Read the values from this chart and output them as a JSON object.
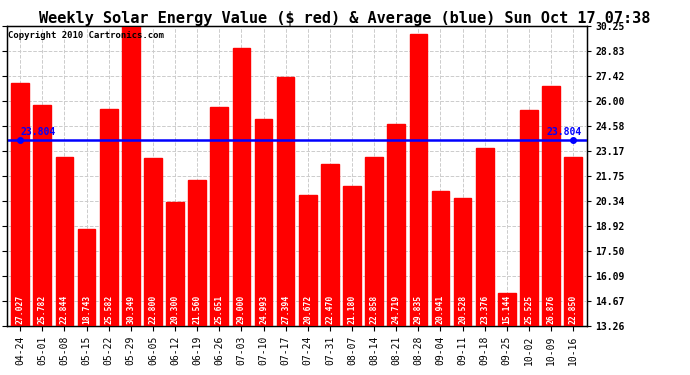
{
  "title": "Weekly Solar Energy Value ($ red) & Average (blue) Sun Oct 17 07:38",
  "copyright": "Copyright 2010 Cartronics.com",
  "categories": [
    "04-24",
    "05-01",
    "05-08",
    "05-15",
    "05-22",
    "05-29",
    "06-05",
    "06-12",
    "06-19",
    "06-26",
    "07-03",
    "07-10",
    "07-17",
    "07-24",
    "07-31",
    "08-07",
    "08-14",
    "08-21",
    "08-28",
    "09-04",
    "09-11",
    "09-18",
    "09-25",
    "10-02",
    "10-09",
    "10-16"
  ],
  "values": [
    27.027,
    25.782,
    22.844,
    18.743,
    25.582,
    30.349,
    22.8,
    20.3,
    21.56,
    25.651,
    29.0,
    24.993,
    27.394,
    20.672,
    22.47,
    21.18,
    22.858,
    24.719,
    29.835,
    20.941,
    20.528,
    23.376,
    15.144,
    25.525,
    26.876,
    22.85
  ],
  "average": 23.804,
  "bar_color": "#ff0000",
  "avg_line_color": "#0000ff",
  "background_color": "#ffffff",
  "plot_bg_color": "#ffffff",
  "grid_color": "#cccccc",
  "yticks": [
    13.26,
    14.67,
    16.09,
    17.5,
    18.92,
    20.34,
    21.75,
    23.17,
    24.58,
    26.0,
    27.42,
    28.83,
    30.25
  ],
  "ylim_min": 13.26,
  "ylim_max": 30.25,
  "title_fontsize": 11,
  "copyright_fontsize": 6.5,
  "tick_fontsize": 7,
  "value_fontsize": 5.8,
  "avg_label_fontsize": 7
}
